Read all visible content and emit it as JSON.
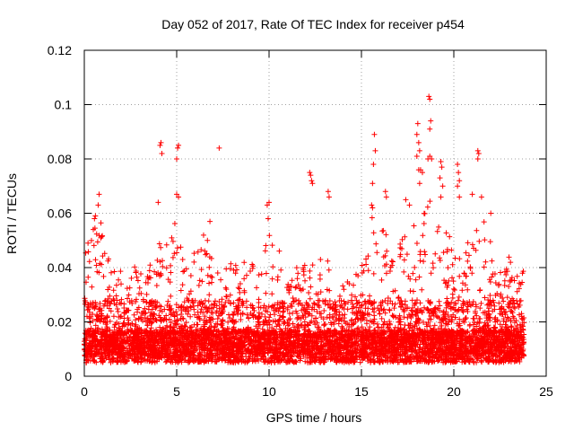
{
  "chart_data": {
    "type": "scatter",
    "title": "Day 052 of 2017, Rate Of TEC Index for receiver p454",
    "xlabel": "GPS time / hours",
    "ylabel": "ROTI / TECUs",
    "xlim": [
      0,
      25
    ],
    "ylim": [
      0,
      0.12
    ],
    "xticks": [
      0,
      5,
      10,
      15,
      20,
      25
    ],
    "xtick_labels": [
      "0",
      "5",
      "10",
      "15",
      "20",
      "25"
    ],
    "yticks": [
      0,
      0.02,
      0.04,
      0.06,
      0.08,
      0.1,
      0.12
    ],
    "ytick_labels": [
      "0",
      "0.02",
      "0.04",
      "0.06",
      "0.08",
      "0.1",
      "0.12"
    ],
    "grid": true,
    "marker": "+",
    "series": [
      {
        "name": "ROTI",
        "color": "#ff0000",
        "x_range": [
          0,
          23.8
        ],
        "envelope": {
          "x": [
            0,
            0.5,
            0.8,
            1.5,
            2.5,
            3.5,
            4.2,
            5.0,
            5.5,
            6.5,
            7.0,
            7.5,
            8.5,
            9.5,
            10.0,
            11.0,
            11.5,
            12.3,
            13.0,
            13.5,
            14.3,
            15.0,
            15.5,
            16.2,
            16.8,
            17.5,
            18.2,
            18.7,
            19.3,
            20.0,
            20.5,
            21.0,
            21.5,
            22.0,
            22.5,
            23.0,
            23.5,
            23.8
          ],
          "peak": [
            0.045,
            0.055,
            0.06,
            0.038,
            0.042,
            0.04,
            0.052,
            0.058,
            0.04,
            0.055,
            0.045,
            0.04,
            0.045,
            0.04,
            0.06,
            0.035,
            0.04,
            0.045,
            0.045,
            0.04,
            0.035,
            0.04,
            0.06,
            0.055,
            0.045,
            0.055,
            0.06,
            0.065,
            0.055,
            0.05,
            0.06,
            0.05,
            0.06,
            0.05,
            0.04,
            0.045,
            0.04,
            0.04
          ],
          "base": 0.005
        },
        "highlights": [
          [
            0.2,
            0.049
          ],
          [
            0.55,
            0.058
          ],
          [
            0.6,
            0.059
          ],
          [
            0.8,
            0.067
          ],
          [
            0.75,
            0.063
          ],
          [
            4.1,
            0.085
          ],
          [
            4.15,
            0.086
          ],
          [
            4.2,
            0.082
          ],
          [
            4.0,
            0.064
          ],
          [
            5.05,
            0.084
          ],
          [
            5.1,
            0.085
          ],
          [
            5.0,
            0.08
          ],
          [
            5.0,
            0.067
          ],
          [
            5.1,
            0.066
          ],
          [
            7.3,
            0.084
          ],
          [
            6.8,
            0.057
          ],
          [
            9.9,
            0.063
          ],
          [
            10.0,
            0.064
          ],
          [
            9.95,
            0.058
          ],
          [
            12.2,
            0.075
          ],
          [
            12.25,
            0.074
          ],
          [
            12.3,
            0.072
          ],
          [
            12.35,
            0.071
          ],
          [
            13.2,
            0.068
          ],
          [
            13.25,
            0.066
          ],
          [
            15.7,
            0.089
          ],
          [
            15.75,
            0.083
          ],
          [
            15.65,
            0.078
          ],
          [
            15.6,
            0.071
          ],
          [
            15.55,
            0.063
          ],
          [
            15.6,
            0.062
          ],
          [
            16.3,
            0.068
          ],
          [
            16.35,
            0.066
          ],
          [
            17.4,
            0.065
          ],
          [
            17.6,
            0.063
          ],
          [
            18.05,
            0.093
          ],
          [
            18.1,
            0.086
          ],
          [
            18.0,
            0.089
          ],
          [
            18.15,
            0.083
          ],
          [
            18.0,
            0.081
          ],
          [
            18.1,
            0.076
          ],
          [
            18.2,
            0.076
          ],
          [
            18.15,
            0.071
          ],
          [
            18.3,
            0.075
          ],
          [
            18.65,
            0.103
          ],
          [
            18.7,
            0.102
          ],
          [
            18.75,
            0.094
          ],
          [
            18.7,
            0.091
          ],
          [
            18.6,
            0.08
          ],
          [
            18.7,
            0.081
          ],
          [
            18.8,
            0.08
          ],
          [
            19.3,
            0.079
          ],
          [
            19.35,
            0.077
          ],
          [
            19.25,
            0.073
          ],
          [
            19.4,
            0.07
          ],
          [
            19.3,
            0.066
          ],
          [
            20.2,
            0.078
          ],
          [
            20.25,
            0.075
          ],
          [
            20.3,
            0.072
          ],
          [
            20.2,
            0.07
          ],
          [
            20.3,
            0.066
          ],
          [
            21.0,
            0.067
          ],
          [
            21.3,
            0.083
          ],
          [
            21.35,
            0.082
          ],
          [
            21.3,
            0.08
          ],
          [
            21.5,
            0.066
          ],
          [
            22.0,
            0.06
          ]
        ]
      }
    ]
  }
}
